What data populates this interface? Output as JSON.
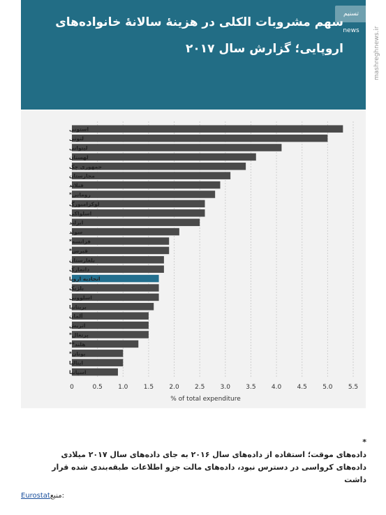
{
  "header": {
    "title_line1": "سهم مشروبات الکلی در هزینهٔ سالانهٔ خانواده‌های",
    "title_line2": "اروپایی؛ گزارش سال ۲۰۱۷",
    "watermark": "تسنیم news",
    "side_watermark": "mashreghnews.ir"
  },
  "chart_data": {
    "type": "bar",
    "orientation": "horizontal",
    "categories": [
      "استونی",
      "لتونی",
      "لیتوانی",
      "لهستان",
      "جمهوری چک",
      "مجارستان",
      "فنلاند",
      "رومانی*",
      "لوکزامبورگ",
      "اسلواکی",
      "ایرلند",
      "سوئد",
      "فرانسه*",
      "قبرس*",
      "بلغارستان",
      "دانمارک",
      "اتحادیه اروپا",
      "بلژیک",
      "اسلوونی",
      "بریتانیا",
      "آلمان",
      "اتریش",
      "پرتغال*",
      "هلند**",
      "یونان*",
      "ایتالیا",
      "اسپانیا"
    ],
    "values": [
      5.3,
      5.0,
      4.1,
      3.6,
      3.4,
      3.1,
      2.9,
      2.8,
      2.6,
      2.6,
      2.5,
      2.1,
      1.9,
      1.9,
      1.8,
      1.8,
      1.7,
      1.7,
      1.7,
      1.6,
      1.5,
      1.5,
      1.5,
      1.3,
      1.0,
      1.0,
      0.9
    ],
    "highlight_index": 16,
    "xlim": [
      0,
      5.5
    ],
    "xticks": [
      "0",
      "0.5",
      "1.0",
      "1.5",
      "2.0",
      "2.5",
      "3.0",
      "3.5",
      "4.0",
      "4.5",
      "5.0",
      "5.5"
    ],
    "xlabel": "% of total expenditure",
    "grid": "vertical dashed",
    "colors": {
      "bar": "#4a4a4a",
      "highlight": "#236f8e",
      "panel": "#f2f2f2",
      "grid": "#cfcfcf"
    }
  },
  "notes": {
    "star": "*",
    "line1": "داده‌های موقت؛ استفاده از داده‌های سال ۲۰۱۶ به جای داده‌های سال ۲۰۱۷ میلادی",
    "line2": "داده‌های کرواسی در دسترس نبود، داده‌های مالت جزو اطلاعات طبقه‌بندی شده قرار داشت"
  },
  "source": {
    "prefix": "منبع:",
    "link": "Eurostat"
  }
}
